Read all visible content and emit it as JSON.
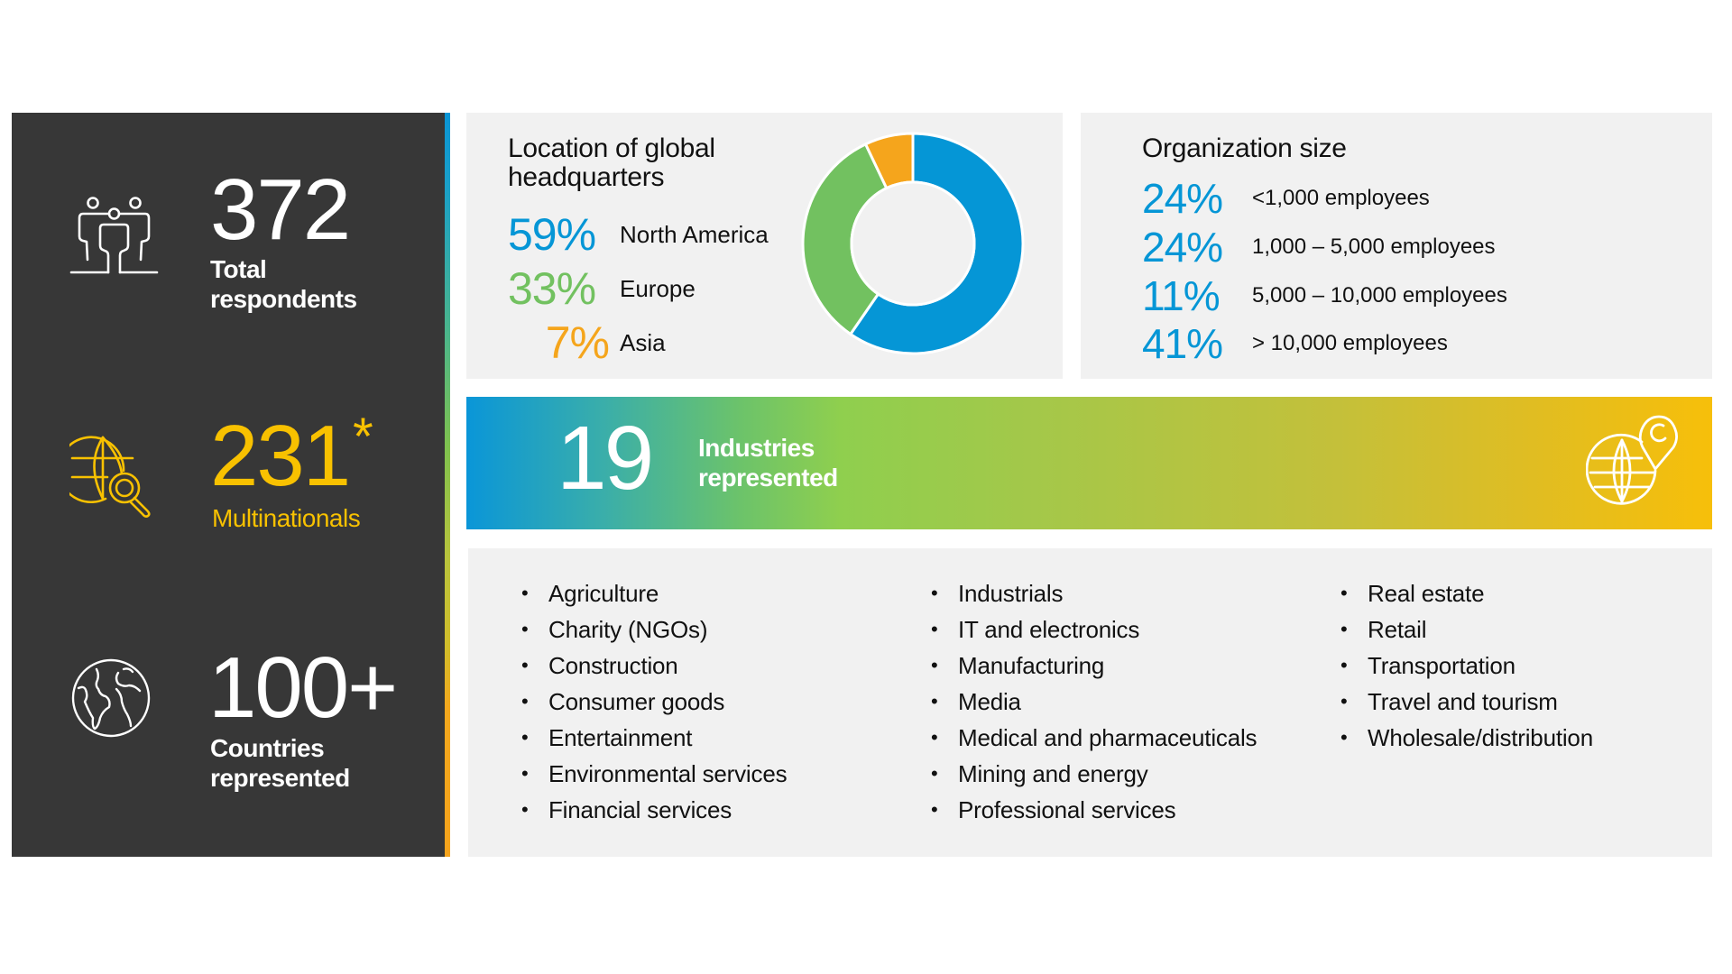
{
  "stats": {
    "respondents": {
      "value": "372",
      "label_line1": "Total",
      "label_line2": "respondents",
      "icon": "people-group-icon"
    },
    "multinationals": {
      "value": "231",
      "footnote_mark": "*",
      "label": "Multinationals",
      "icon": "globe-search-icon"
    },
    "countries": {
      "value": "100+",
      "label_line1": "Countries",
      "label_line2": "represented",
      "icon": "world-map-globe-icon"
    }
  },
  "headquarters": {
    "title_line1": "Location of global",
    "title_line2": "headquarters",
    "rows": [
      {
        "pct": "59%",
        "label": "North America"
      },
      {
        "pct": "33%",
        "label": "Europe"
      },
      {
        "pct": "7%",
        "label": "Asia"
      }
    ]
  },
  "org_size": {
    "title": "Organization size",
    "rows": [
      {
        "pct": "24%",
        "label": "<1,000 employees"
      },
      {
        "pct": "24%",
        "label": "1,000 – 5,000 employees"
      },
      {
        "pct": "11%",
        "label": "5,000 – 10,000 employees"
      },
      {
        "pct": "41%",
        "label": "> 10,000 employees"
      }
    ]
  },
  "industries_banner": {
    "value": "19",
    "label_line1": "Industries",
    "label_line2": "represented",
    "icon": "globe-location-pin-icon"
  },
  "industries": {
    "columns": [
      [
        "Agriculture",
        "Charity (NGOs)",
        "Construction",
        "Consumer goods",
        "Entertainment",
        "Environmental services",
        "Financial services"
      ],
      [
        "Industrials",
        "IT and electronics",
        "Manufacturing",
        "Media",
        "Medical and pharmaceuticals",
        "Mining and energy",
        "Professional services"
      ],
      [
        "Real estate",
        "Retail",
        "Transportation",
        "Travel and tourism",
        "Wholesale/distribution"
      ]
    ]
  },
  "colors": {
    "blue": "#0596d6",
    "green": "#72c160",
    "orange": "#f5a51c",
    "yellow": "#f8c100",
    "dark_panel": "#373737",
    "card_bg": "#f1f1f1"
  },
  "chart_data": {
    "type": "pie",
    "variant": "donut",
    "title": "Location of global headquarters",
    "categories": [
      "North America",
      "Europe",
      "Asia"
    ],
    "values": [
      59,
      33,
      7
    ],
    "unit": "%",
    "colors": [
      "#0596d6",
      "#72c160",
      "#f5a51c"
    ],
    "start": "top, clockwise",
    "legend": "left"
  }
}
